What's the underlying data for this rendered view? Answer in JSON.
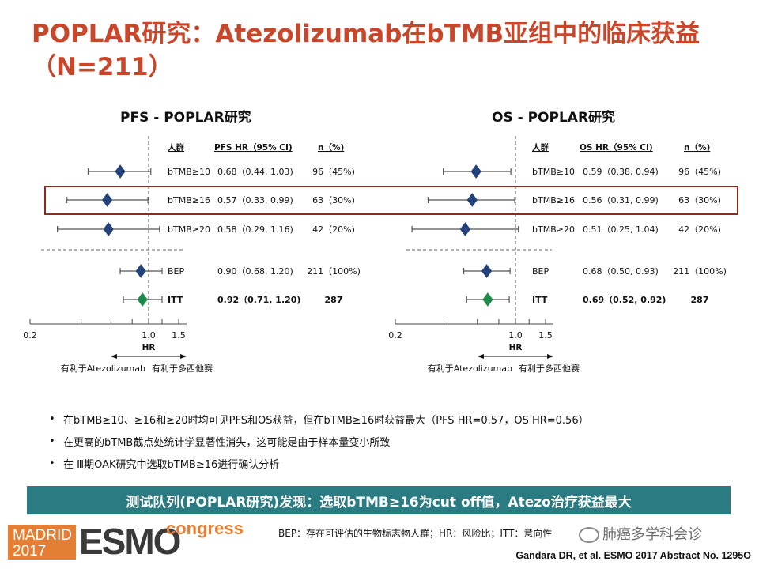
{
  "page": {
    "title": "POPLAR研究：Atezolizumab在bTMB亚组中的临床获益（N=211）",
    "bullets": [
      "在bTMB≥10、≥16和≥20时均可见PFS和OS获益，但在bTMB≥16时获益最大（PFS HR=0.57，OS HR=0.56）",
      "在更高的bTMB截点处统计学显著性消失，这可能是由于样本量变小所致",
      "在 Ⅲ期OAK研究中选取bTMB≥16进行确认分析"
    ],
    "banner": "测试队列(POPLAR研究)发现：选取bTMB≥16为cut  off值，Atezo治疗获益最大",
    "footnote": "BEP：存在可评估的生物标志物人群；HR：风险比；ITT：意向性",
    "watermark": "肺癌多学科会诊",
    "citation": "Gandara DR, et al. ESMO 2017 Abstract No. 1295O",
    "logo": {
      "city": "MADRID",
      "year": "2017",
      "brand": "ESMO",
      "suffix": "congress"
    },
    "colors": {
      "title": "#c8472b",
      "banner": "#2b7c82",
      "highlight": "#8b2a1f",
      "diamond_blue": "#24437a",
      "diamond_green": "#1e8a4a",
      "logo_orange": "#e47e34"
    }
  },
  "chart_data": [
    {
      "type": "forest",
      "title": "PFS - POPLAR研究",
      "column_headers": [
        "人群",
        "PFS HR（95% CI)",
        "n（%)"
      ],
      "rows": [
        {
          "label": "bTMB≥10",
          "hr": 0.68,
          "ci": [
            0.44,
            1.03
          ],
          "hr_text": "0.68（0.44, 1.03)",
          "n_text": "96（45%)",
          "color": "blue",
          "bold": false
        },
        {
          "label": "bTMB≥16",
          "hr": 0.57,
          "ci": [
            0.33,
            0.99
          ],
          "hr_text": "0.57（0.33, 0.99)",
          "n_text": "63（30%)",
          "color": "blue",
          "bold": false,
          "highlight": true
        },
        {
          "label": "bTMB≥20",
          "hr": 0.58,
          "ci": [
            0.29,
            1.16
          ],
          "hr_text": "0.58（0.29, 1.16)",
          "n_text": "42（20%)",
          "color": "blue",
          "bold": false
        },
        {
          "label": "BEP",
          "hr": 0.9,
          "ci": [
            0.68,
            1.2
          ],
          "hr_text": "0.90（0.68, 1.20)",
          "n_text": "211（100%)",
          "color": "blue",
          "bold": false
        },
        {
          "label": "ITT",
          "hr": 0.92,
          "ci": [
            0.71,
            1.2
          ],
          "hr_text": "0.92（0.71, 1.20)",
          "n_text": "287",
          "color": "green",
          "bold": true
        }
      ],
      "x_ticks": [
        "0.2",
        "1.0",
        "1.5"
      ],
      "xlim": [
        0.2,
        1.5
      ],
      "xscale": "log",
      "xlabel": "HR",
      "favors_left": "有利于Atezolizumab",
      "favors_right": "有利于多西他赛"
    },
    {
      "type": "forest",
      "title": "OS - POPLAR研究",
      "column_headers": [
        "人群",
        "OS HR（95% CI)",
        "n（%)"
      ],
      "rows": [
        {
          "label": "bTMB≥10",
          "hr": 0.59,
          "ci": [
            0.38,
            0.94
          ],
          "hr_text": "0.59（0.38, 0.94)",
          "n_text": "96（45%)",
          "color": "blue",
          "bold": false
        },
        {
          "label": "bTMB≥16",
          "hr": 0.56,
          "ci": [
            0.31,
            0.99
          ],
          "hr_text": "0.56（0.31, 0.99)",
          "n_text": "63（30%)",
          "color": "blue",
          "bold": false,
          "highlight": true
        },
        {
          "label": "bTMB≥20",
          "hr": 0.51,
          "ci": [
            0.25,
            1.04
          ],
          "hr_text": "0.51（0.25, 1.04)",
          "n_text": "42（20%)",
          "color": "blue",
          "bold": false
        },
        {
          "label": "BEP",
          "hr": 0.68,
          "ci": [
            0.5,
            0.93
          ],
          "hr_text": "0.68（0.50, 0.93)",
          "n_text": "211（100%)",
          "color": "blue",
          "bold": false
        },
        {
          "label": "ITT",
          "hr": 0.69,
          "ci": [
            0.52,
            0.92
          ],
          "hr_text": "0.69（0.52, 0.92)",
          "n_text": "287",
          "color": "green",
          "bold": true
        }
      ],
      "x_ticks": [
        "0.2",
        "1.0",
        "1.5"
      ],
      "xlim": [
        0.2,
        1.5
      ],
      "xscale": "log",
      "xlabel": "HR",
      "favors_left": "有利于Atezolizumab",
      "favors_right": "有利于多西他赛"
    }
  ]
}
